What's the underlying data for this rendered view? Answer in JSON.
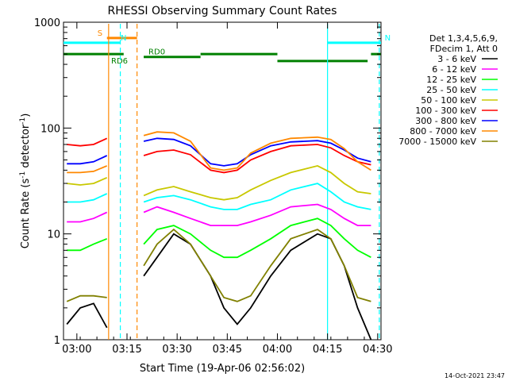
{
  "chart_data": {
    "type": "line",
    "title": "RHESSI Observing Summary Count Rates",
    "xlabel": "Start Time (19-Apr-06 02:56:02)",
    "ylabel_main": "Count Rate (s",
    "ylabel_sup1": "-1",
    "ylabel_mid": " detector",
    "ylabel_sup2": "-1",
    "ylabel_end": ")",
    "x_unit": "minutes since 02:56:02",
    "xlim": [
      0,
      95
    ],
    "ylim": [
      1,
      1000
    ],
    "log_y": true,
    "grid": false,
    "x_ticks": [
      {
        "v": 4,
        "label": "03:00"
      },
      {
        "v": 19,
        "label": "03:15"
      },
      {
        "v": 34,
        "label": "03:30"
      },
      {
        "v": 49,
        "label": "03:45"
      },
      {
        "v": 64,
        "label": "04:00"
      },
      {
        "v": 79,
        "label": "04:15"
      },
      {
        "v": 94,
        "label": "04:30"
      }
    ],
    "y_ticks": [
      {
        "v": 1,
        "label": "1"
      },
      {
        "v": 10,
        "label": "10"
      },
      {
        "v": 100,
        "label": "100"
      },
      {
        "v": 1000,
        "label": "1000"
      }
    ],
    "legend": {
      "placement": "right",
      "header": [
        "Det 1,3,4,5,6,9,",
        "FDecim 1, Att 0"
      ]
    },
    "series": [
      {
        "name": "3 - 6 keV",
        "color": "#000000",
        "values": [
          1.4,
          2,
          2.2,
          1.3,
          null,
          null,
          4,
          6,
          10,
          8,
          4,
          2,
          1.4,
          2,
          4,
          7,
          10,
          9,
          5,
          2,
          1
        ]
      },
      {
        "name": "6 - 12 keV",
        "color": "#ff00ff",
        "values": [
          13,
          13,
          14,
          16,
          null,
          null,
          16,
          18,
          16,
          14,
          12,
          12,
          12,
          13,
          15,
          18,
          19,
          17,
          14,
          12,
          12
        ]
      },
      {
        "name": "12 - 25 keV",
        "color": "#00ff00",
        "values": [
          7,
          7,
          8,
          9,
          null,
          null,
          8,
          11,
          12,
          10,
          7,
          6,
          6,
          7,
          9,
          12,
          14,
          12,
          9,
          7,
          6
        ]
      },
      {
        "name": "25 - 50 keV",
        "color": "#00ffff",
        "values": [
          20,
          20,
          21,
          24,
          null,
          null,
          20,
          22,
          23,
          21,
          18,
          17,
          17,
          19,
          21,
          26,
          30,
          25,
          20,
          18,
          17
        ]
      },
      {
        "name": "50 - 100 keV",
        "color": "#c8c800",
        "values": [
          30,
          29,
          30,
          34,
          null,
          null,
          23,
          26,
          28,
          25,
          22,
          21,
          22,
          26,
          32,
          38,
          44,
          38,
          30,
          25,
          24
        ]
      },
      {
        "name": "100 - 300 keV",
        "color": "#ff0000",
        "values": [
          70,
          68,
          70,
          80,
          null,
          null,
          55,
          60,
          62,
          56,
          40,
          38,
          40,
          50,
          60,
          68,
          70,
          65,
          55,
          48,
          45
        ]
      },
      {
        "name": "300 - 800 keV",
        "color": "#0000ff",
        "values": [
          46,
          46,
          48,
          55,
          null,
          null,
          75,
          80,
          78,
          68,
          46,
          44,
          46,
          56,
          68,
          74,
          76,
          72,
          62,
          52,
          48
        ]
      },
      {
        "name": "800 - 7000 keV",
        "color": "#ff8800",
        "values": [
          38,
          38,
          39,
          44,
          null,
          null,
          85,
          92,
          90,
          75,
          42,
          40,
          42,
          58,
          72,
          80,
          82,
          78,
          64,
          48,
          40
        ]
      },
      {
        "name": "7000 - 15000 keV",
        "color": "#808000",
        "values": [
          2.3,
          2.6,
          2.6,
          2.5,
          null,
          null,
          5,
          8,
          11,
          8,
          4,
          2.5,
          2.3,
          2.6,
          5,
          9,
          11,
          9,
          5,
          2.5,
          2.3
        ]
      }
    ],
    "series_x": [
      1,
      5,
      9,
      13,
      15,
      17,
      24,
      28,
      33,
      38,
      44,
      48,
      52,
      56,
      62,
      68,
      76,
      80,
      84,
      88,
      92
    ],
    "state_bars": [
      {
        "label": "S",
        "color": "#ff8800",
        "x0": 13,
        "x1": 22,
        "y": 710
      },
      {
        "label": "N",
        "color": "#00ffff",
        "x0": 0,
        "x1": 17,
        "y": 640
      },
      {
        "label": "N",
        "color": "#00ffff",
        "x0": 79,
        "x1": 95,
        "y": 640
      },
      {
        "label": "RD6",
        "color": "#008000",
        "x0": 0,
        "x1": 18,
        "y": 500
      },
      {
        "label": "RD0",
        "color": "#008000",
        "x0": 24,
        "x1": 41,
        "y": 470
      },
      {
        "label": "",
        "color": "#008000",
        "x0": 41,
        "x1": 64,
        "y": 500
      },
      {
        "label": "",
        "color": "#008000",
        "x0": 64,
        "x1": 91,
        "y": 430
      },
      {
        "label": "",
        "color": "#008000",
        "x0": 92,
        "x1": 95,
        "y": 500
      }
    ],
    "markers": [
      {
        "x": 13.5,
        "color": "#ff8800",
        "style": "solid"
      },
      {
        "x": 17,
        "color": "#00ffff",
        "style": "dashed"
      },
      {
        "x": 22,
        "color": "#ff8800",
        "style": "dashed"
      },
      {
        "x": 79,
        "color": "#00ffff",
        "style": "solid"
      },
      {
        "x": 94.5,
        "color": "#00ffff",
        "style": "dashed"
      }
    ]
  },
  "footer": {
    "timestamp": "14-Oct-2021 23:47"
  }
}
